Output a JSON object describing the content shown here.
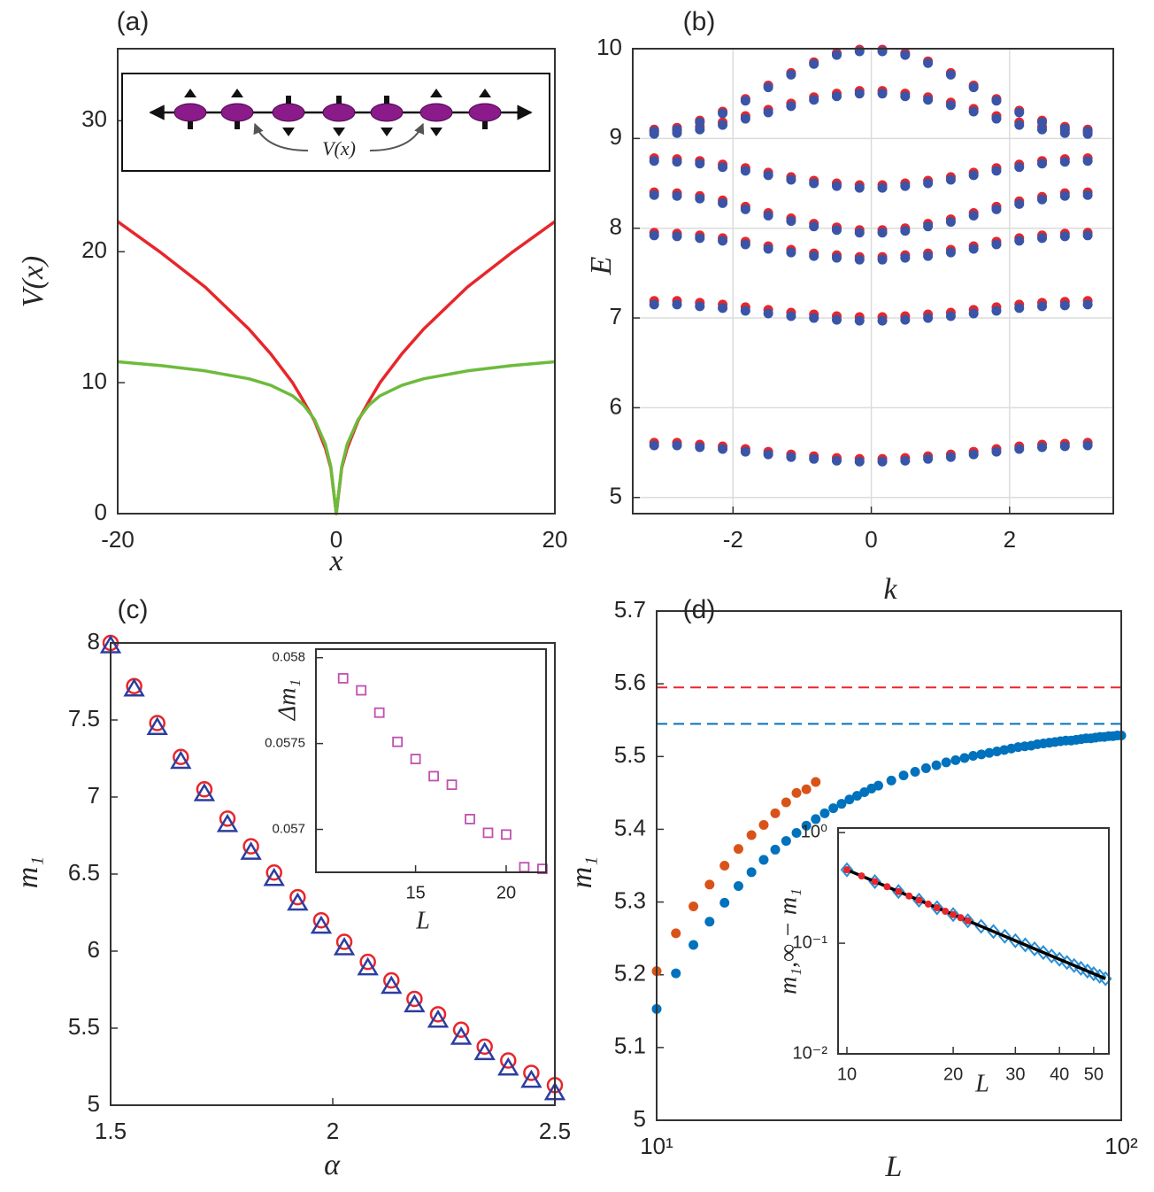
{
  "chart_data": [
    {
      "type": "line",
      "panel_label": "(a)",
      "xlabel": "x",
      "ylabel": "V(x)",
      "annotation": "V(x)",
      "xlim": [
        -20,
        20
      ],
      "ylim": [
        0,
        35.5
      ],
      "xticks": [
        -20,
        0,
        20
      ],
      "yticks": [
        0,
        10,
        20,
        30
      ],
      "x": [
        -20,
        -16,
        -12,
        -8,
        -6,
        -4,
        -3,
        -2,
        -1,
        -0.5,
        0,
        0.5,
        1,
        2,
        3,
        4,
        6,
        8,
        12,
        16,
        20
      ],
      "series": [
        {
          "color": "#e8262a",
          "values": [
            22.3,
            19.9,
            17.3,
            14.1,
            12.2,
            10.0,
            8.6,
            7.1,
            5.0,
            3.5,
            0,
            3.5,
            5.0,
            7.1,
            8.6,
            10.0,
            12.2,
            14.1,
            17.3,
            19.9,
            22.3
          ]
        },
        {
          "color": "#6dbb3c",
          "values": [
            11.6,
            11.3,
            10.9,
            10.3,
            9.8,
            9.0,
            8.3,
            7.2,
            5.3,
            3.6,
            0,
            3.6,
            5.3,
            7.2,
            8.3,
            9.0,
            9.8,
            10.3,
            10.9,
            11.3,
            11.6
          ]
        }
      ]
    },
    {
      "type": "scatter",
      "panel_label": "(b)",
      "xlabel": "k",
      "ylabel": "E",
      "grid": true,
      "xlim": [
        -3.45,
        3.5
      ],
      "ylim": [
        4.82,
        10
      ],
      "xticks": [
        -2,
        0,
        2
      ],
      "yticks": [
        5,
        6,
        7,
        8,
        9,
        10
      ],
      "x": [
        -3.14,
        -2.81,
        -2.48,
        -2.15,
        -1.82,
        -1.49,
        -1.16,
        -0.83,
        -0.5,
        -0.17,
        0.16,
        0.49,
        0.82,
        1.15,
        1.48,
        1.81,
        2.14,
        2.47,
        2.8,
        3.13
      ],
      "series": [
        {
          "marker": "dot",
          "color": "#e8262a",
          "values": [
            5.61,
            5.61,
            5.59,
            5.57,
            5.54,
            5.51,
            5.48,
            5.46,
            5.44,
            5.43,
            5.43,
            5.44,
            5.46,
            5.48,
            5.51,
            5.54,
            5.57,
            5.59,
            5.6,
            5.61
          ]
        },
        {
          "marker": "dot",
          "color": "#e8262a",
          "values": [
            7.19,
            7.19,
            7.17,
            7.15,
            7.12,
            7.09,
            7.06,
            7.04,
            7.02,
            7.01,
            7.01,
            7.02,
            7.04,
            7.06,
            7.09,
            7.12,
            7.15,
            7.17,
            7.18,
            7.19
          ]
        },
        {
          "marker": "dot",
          "color": "#e8262a",
          "values": [
            7.95,
            7.94,
            7.92,
            7.89,
            7.85,
            7.8,
            7.76,
            7.72,
            7.7,
            7.68,
            7.68,
            7.7,
            7.72,
            7.76,
            7.8,
            7.85,
            7.89,
            7.92,
            7.94,
            7.95
          ]
        },
        {
          "marker": "dot",
          "color": "#e8262a",
          "values": [
            8.4,
            8.39,
            8.36,
            8.31,
            8.24,
            8.17,
            8.11,
            8.05,
            8.01,
            7.98,
            7.98,
            8.0,
            8.05,
            8.1,
            8.17,
            8.24,
            8.3,
            8.35,
            8.39,
            8.4
          ]
        },
        {
          "marker": "dot",
          "color": "#e8262a",
          "values": [
            8.78,
            8.77,
            8.75,
            8.71,
            8.67,
            8.62,
            8.57,
            8.53,
            8.5,
            8.48,
            8.48,
            8.5,
            8.53,
            8.57,
            8.62,
            8.67,
            8.71,
            8.75,
            8.77,
            8.78
          ]
        },
        {
          "marker": "dot",
          "color": "#e8262a",
          "values": [
            9.08,
            9.09,
            9.13,
            9.18,
            9.25,
            9.32,
            9.39,
            9.46,
            9.5,
            9.53,
            9.53,
            9.5,
            9.46,
            9.4,
            9.33,
            9.25,
            9.18,
            9.13,
            9.09,
            9.08
          ]
        },
        {
          "marker": "dot",
          "color": "#e8262a",
          "values": [
            9.1,
            9.12,
            9.2,
            9.3,
            9.44,
            9.59,
            9.73,
            9.85,
            9.95,
            9.99,
            9.99,
            9.95,
            9.86,
            9.73,
            9.59,
            9.44,
            9.31,
            9.2,
            9.13,
            9.1
          ]
        },
        {
          "marker": "dot",
          "color": "#3a55a8",
          "values": [
            5.58,
            5.58,
            5.56,
            5.54,
            5.51,
            5.48,
            5.45,
            5.43,
            5.41,
            5.4,
            5.4,
            5.41,
            5.43,
            5.45,
            5.48,
            5.51,
            5.54,
            5.56,
            5.57,
            5.58
          ]
        },
        {
          "marker": "dot",
          "color": "#3a55a8",
          "values": [
            7.15,
            7.15,
            7.13,
            7.11,
            7.08,
            7.05,
            7.02,
            7.0,
            6.98,
            6.97,
            6.97,
            6.98,
            7.0,
            7.02,
            7.05,
            7.08,
            7.11,
            7.13,
            7.14,
            7.15
          ]
        },
        {
          "marker": "dot",
          "color": "#3a55a8",
          "values": [
            7.92,
            7.91,
            7.89,
            7.86,
            7.82,
            7.77,
            7.73,
            7.69,
            7.67,
            7.65,
            7.65,
            7.67,
            7.69,
            7.73,
            7.77,
            7.82,
            7.86,
            7.89,
            7.91,
            7.92
          ]
        },
        {
          "marker": "dot",
          "color": "#3a55a8",
          "values": [
            8.37,
            8.36,
            8.33,
            8.28,
            8.21,
            8.14,
            8.08,
            8.02,
            7.98,
            7.95,
            7.95,
            7.97,
            8.02,
            8.07,
            8.14,
            8.21,
            8.27,
            8.32,
            8.36,
            8.37
          ]
        },
        {
          "marker": "dot",
          "color": "#3a55a8",
          "values": [
            8.75,
            8.74,
            8.72,
            8.68,
            8.64,
            8.59,
            8.54,
            8.5,
            8.47,
            8.45,
            8.45,
            8.47,
            8.5,
            8.54,
            8.59,
            8.64,
            8.68,
            8.72,
            8.74,
            8.75
          ]
        },
        {
          "marker": "dot",
          "color": "#3a55a8",
          "values": [
            9.05,
            9.06,
            9.1,
            9.15,
            9.22,
            9.29,
            9.36,
            9.43,
            9.47,
            9.5,
            9.5,
            9.47,
            9.43,
            9.37,
            9.3,
            9.22,
            9.15,
            9.1,
            9.06,
            9.05
          ]
        },
        {
          "marker": "dot",
          "color": "#3a55a8",
          "values": [
            9.08,
            9.1,
            9.18,
            9.28,
            9.42,
            9.57,
            9.71,
            9.83,
            9.93,
            9.97,
            9.97,
            9.93,
            9.84,
            9.71,
            9.57,
            9.42,
            9.29,
            9.18,
            9.11,
            9.08
          ]
        }
      ]
    },
    {
      "type": "scatter",
      "panel_label": "(c)",
      "xlabel": "α",
      "ylabel": "m₁",
      "xlim": [
        1.5,
        2.5
      ],
      "ylim": [
        5,
        8
      ],
      "xticks": [
        1.5,
        2,
        2.5
      ],
      "yticks": [
        5,
        5.5,
        6,
        6.5,
        7,
        7.5,
        8
      ],
      "x": [
        1.5,
        1.553,
        1.605,
        1.658,
        1.711,
        1.763,
        1.816,
        1.868,
        1.921,
        1.974,
        2.026,
        2.079,
        2.132,
        2.184,
        2.237,
        2.289,
        2.342,
        2.395,
        2.447,
        2.5
      ],
      "series": [
        {
          "marker": "circle",
          "color": "#e8262a",
          "values": [
            8.0,
            7.72,
            7.48,
            7.26,
            7.05,
            6.86,
            6.68,
            6.51,
            6.35,
            6.2,
            6.06,
            5.93,
            5.81,
            5.69,
            5.59,
            5.49,
            5.38,
            5.29,
            5.21,
            5.13
          ]
        },
        {
          "marker": "triangle",
          "color": "#2b3ea0",
          "values": [
            7.98,
            7.7,
            7.45,
            7.23,
            7.02,
            6.82,
            6.64,
            6.47,
            6.31,
            6.16,
            6.02,
            5.89,
            5.77,
            5.65,
            5.55,
            5.44,
            5.34,
            5.24,
            5.16,
            5.08
          ]
        }
      ]
    },
    {
      "type": "scatter",
      "xlabel": "L",
      "ylabel": "Δm₁",
      "xlim": [
        9.5,
        22.2
      ],
      "ylim": [
        0.05675,
        0.05805
      ],
      "xticks": [
        15,
        20
      ],
      "yticks": [
        0.057,
        0.0575,
        0.058
      ],
      "x": [
        11,
        12,
        13,
        14,
        15,
        16,
        17,
        18,
        19,
        20,
        21,
        22
      ],
      "series": [
        {
          "marker": "square",
          "color": "#c050b0",
          "values": [
            0.05788,
            0.05781,
            0.05768,
            0.05751,
            0.05741,
            0.05731,
            0.05726,
            0.05706,
            0.05698,
            0.05697,
            0.05678,
            0.05677
          ]
        }
      ]
    },
    {
      "type": "scatter",
      "panel_label": "(d)",
      "xlabel": "L",
      "ylabel": "m₁",
      "xlog": true,
      "xlim": [
        10,
        100
      ],
      "ylim": [
        5,
        5.7
      ],
      "xticks": [
        {
          "value": 10,
          "label": "10¹"
        },
        {
          "value": 100,
          "label": "10²"
        }
      ],
      "yticks": [
        5,
        5.1,
        5.2,
        5.3,
        5.4,
        5.5,
        5.6,
        5.7
      ],
      "series": [
        {
          "marker": "dashed-line",
          "color": "#e8262a",
          "x": [
            10,
            100
          ],
          "values": [
            5.595,
            5.595
          ]
        },
        {
          "marker": "dashed-line",
          "color": "#0072bd",
          "x": [
            10,
            100
          ],
          "values": [
            5.545,
            5.545
          ]
        },
        {
          "marker": "dot",
          "color": "#d95319",
          "x": [
            10,
            11,
            12,
            13,
            14,
            15,
            16,
            17,
            18,
            19,
            20,
            21,
            22
          ],
          "values": [
            5.205,
            5.257,
            5.294,
            5.324,
            5.35,
            5.373,
            5.392,
            5.406,
            5.422,
            5.437,
            5.45,
            5.455,
            5.465
          ]
        },
        {
          "marker": "dot",
          "color": "#0072bd",
          "x": [
            10,
            11,
            12,
            13,
            14,
            15,
            16,
            17,
            18,
            19,
            20,
            21,
            22,
            23,
            24,
            25,
            26,
            27,
            28,
            29,
            30,
            32,
            34,
            36,
            38,
            40,
            42,
            44,
            46,
            48,
            50,
            52,
            54,
            56,
            58,
            60,
            62,
            64,
            66,
            68,
            70,
            72,
            74,
            76,
            78,
            80,
            82,
            84,
            86,
            88,
            90,
            92,
            94,
            96,
            98,
            100
          ],
          "values": [
            5.153,
            5.202,
            5.241,
            5.273,
            5.299,
            5.322,
            5.341,
            5.358,
            5.372,
            5.384,
            5.395,
            5.405,
            5.414,
            5.422,
            5.429,
            5.435,
            5.441,
            5.446,
            5.451,
            5.456,
            5.46,
            5.467,
            5.474,
            5.479,
            5.484,
            5.488,
            5.492,
            5.495,
            5.498,
            5.501,
            5.503,
            5.505,
            5.507,
            5.509,
            5.511,
            5.513,
            5.514,
            5.515,
            5.517,
            5.518,
            5.519,
            5.52,
            5.521,
            5.522,
            5.522,
            5.523,
            5.524,
            5.525,
            5.525,
            5.526,
            5.527,
            5.527,
            5.528,
            5.528,
            5.529,
            5.529
          ]
        }
      ]
    },
    {
      "type": "scatter",
      "xlabel": "L",
      "ylabel": "m₁,∞ − m₁",
      "xlog": true,
      "ylog": true,
      "xlim": [
        9.44,
        55.2
      ],
      "ylim": [
        0.01,
        1.1
      ],
      "xticks": [
        10,
        20,
        30,
        40,
        50
      ],
      "yticks": [
        {
          "value": 0.01,
          "label": "10⁻²"
        },
        {
          "value": 0.1,
          "label": "10⁻¹"
        },
        {
          "value": 1,
          "label": "10⁰"
        }
      ],
      "series": [
        {
          "marker": "diamond",
          "color": "#2a8fd6",
          "x": [
            10,
            12,
            14,
            16,
            18,
            20,
            22,
            24,
            26,
            28,
            30,
            32,
            34,
            36,
            38,
            40,
            42,
            44,
            46,
            48,
            50,
            52,
            54
          ],
          "values": [
            0.461,
            0.3608,
            0.2933,
            0.2451,
            0.2092,
            0.1816,
            0.1598,
            0.1421,
            0.1277,
            0.1155,
            0.1053,
            0.0966,
            0.089,
            0.0824,
            0.0767,
            0.0716,
            0.067,
            0.0629,
            0.0593,
            0.056,
            0.053,
            0.0503,
            0.0478
          ]
        },
        {
          "marker": "line",
          "color": "#000000",
          "x": [
            10,
            54
          ],
          "values": [
            0.461,
            0.0478
          ]
        },
        {
          "marker": "small-dot",
          "color": "#e8262a",
          "x": [
            10,
            11,
            12,
            13,
            14,
            15,
            16,
            17,
            18,
            19,
            20,
            21,
            22
          ],
          "values": [
            0.461,
            0.4056,
            0.3608,
            0.324,
            0.2933,
            0.2673,
            0.2451,
            0.2259,
            0.2092,
            0.1945,
            0.1816,
            0.1701,
            0.1598
          ]
        }
      ]
    }
  ]
}
